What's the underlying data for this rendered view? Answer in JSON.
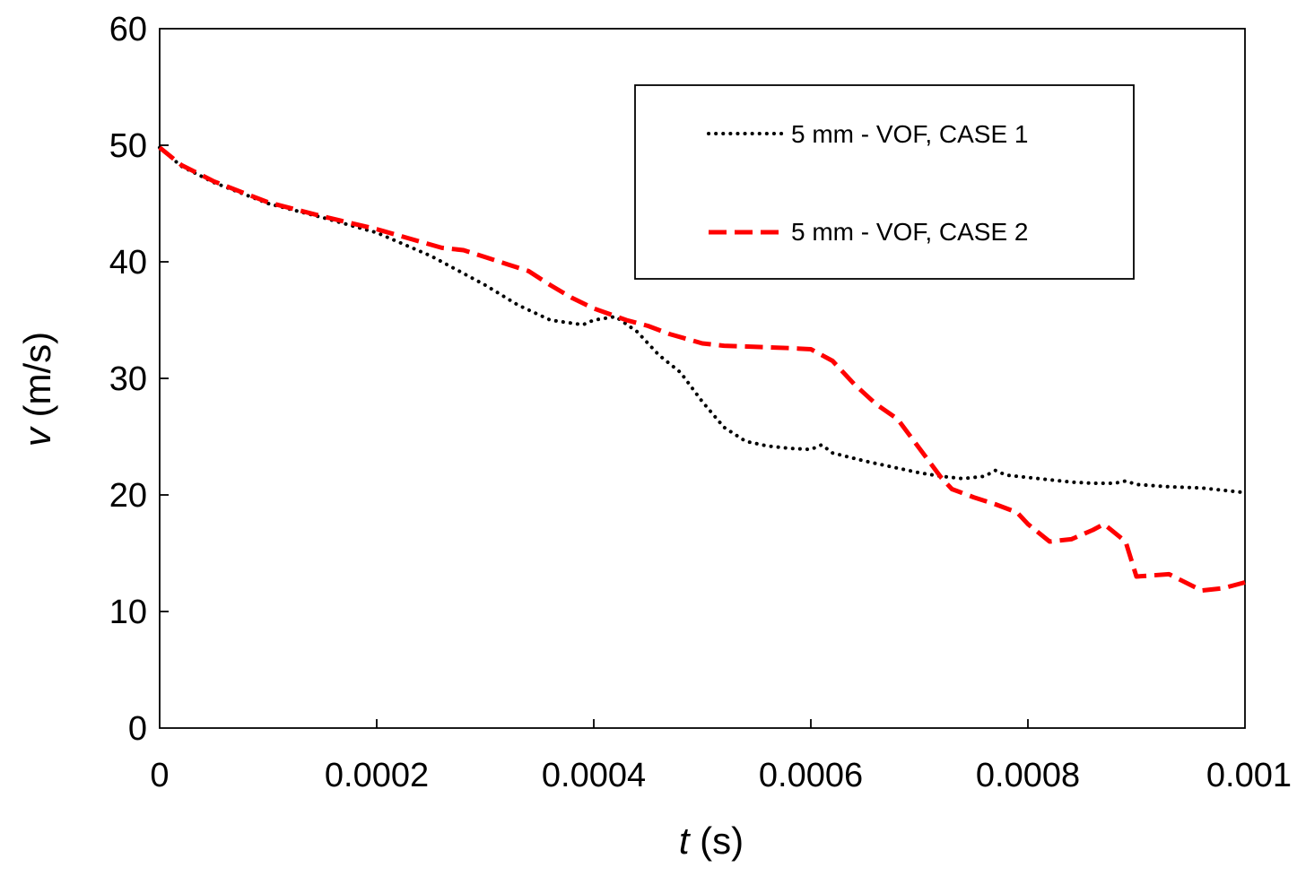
{
  "chart_data": {
    "type": "line",
    "title": "",
    "xlabel": {
      "var": "t",
      "unit": " (s)"
    },
    "ylabel": {
      "var": "v",
      "unit": " (m/s)"
    },
    "xlim": [
      0,
      0.001
    ],
    "ylim": [
      0,
      60
    ],
    "xticks": [
      0,
      0.0002,
      0.0004,
      0.0006,
      0.0008,
      0.001
    ],
    "xtick_labels": [
      "0",
      "0.0002",
      "0.0004",
      "0.0006",
      "0.0008",
      "0.001"
    ],
    "yticks": [
      0,
      10,
      20,
      30,
      40,
      50,
      60
    ],
    "ytick_labels": [
      "0",
      "10",
      "20",
      "30",
      "40",
      "50",
      "60"
    ],
    "grid": false,
    "legend_position": "top-right",
    "series": [
      {
        "name": "5 mm - VOF, CASE 1",
        "color": "#000000",
        "style": "dotted",
        "x": [
          0,
          2e-05,
          5e-05,
          0.0001,
          0.00015,
          0.0002,
          0.00025,
          0.0003,
          0.00033,
          0.00036,
          0.00039,
          0.0004,
          0.00042,
          0.00044,
          0.00046,
          0.00048,
          0.0005,
          0.00052,
          0.00054,
          0.00056,
          0.00058,
          0.0006,
          0.00061,
          0.00062,
          0.00065,
          0.00068,
          0.0007,
          0.00072,
          0.00074,
          0.00076,
          0.00077,
          0.00078,
          0.0008,
          0.00082,
          0.00084,
          0.00086,
          0.00088,
          0.00089,
          0.0009,
          0.00093,
          0.00096,
          0.001
        ],
        "y": [
          49.8,
          48.2,
          46.8,
          45.0,
          43.8,
          42.5,
          40.5,
          38.0,
          36.3,
          35.0,
          34.6,
          35.0,
          35.3,
          34.0,
          32.0,
          30.5,
          28.0,
          25.8,
          24.6,
          24.2,
          24.0,
          23.9,
          24.3,
          23.6,
          22.9,
          22.3,
          21.9,
          21.6,
          21.4,
          21.6,
          22.1,
          21.7,
          21.5,
          21.3,
          21.1,
          21.0,
          21.0,
          21.2,
          20.9,
          20.7,
          20.6,
          20.2
        ]
      },
      {
        "name": "5 mm - VOF, CASE 2",
        "color": "#ff0000",
        "style": "dashed",
        "x": [
          0,
          2e-05,
          5e-05,
          0.0001,
          0.00015,
          0.0002,
          0.00023,
          0.00026,
          0.00028,
          0.0003,
          0.00032,
          0.00034,
          0.00036,
          0.00038,
          0.0004,
          0.00043,
          0.00045,
          0.00047,
          0.0005,
          0.00052,
          0.00055,
          0.00058,
          0.0006,
          0.00062,
          0.00064,
          0.00066,
          0.00068,
          0.0007,
          0.00072,
          0.00073,
          0.00075,
          0.00077,
          0.00079,
          0.0008,
          0.00082,
          0.00084,
          0.00086,
          0.00087,
          0.00089,
          0.0009,
          0.00093,
          0.00096,
          0.00098,
          0.001
        ],
        "y": [
          49.8,
          48.3,
          46.9,
          45.1,
          43.9,
          42.8,
          42.0,
          41.2,
          41.0,
          40.4,
          39.8,
          39.2,
          38.0,
          36.9,
          36.0,
          35.0,
          34.5,
          33.8,
          33.0,
          32.8,
          32.7,
          32.6,
          32.5,
          31.5,
          29.5,
          27.8,
          26.5,
          24.0,
          21.5,
          20.5,
          19.8,
          19.2,
          18.5,
          17.5,
          16.0,
          16.2,
          17.0,
          17.5,
          16.0,
          13.0,
          13.2,
          11.8,
          12.0,
          12.5
        ]
      }
    ]
  }
}
